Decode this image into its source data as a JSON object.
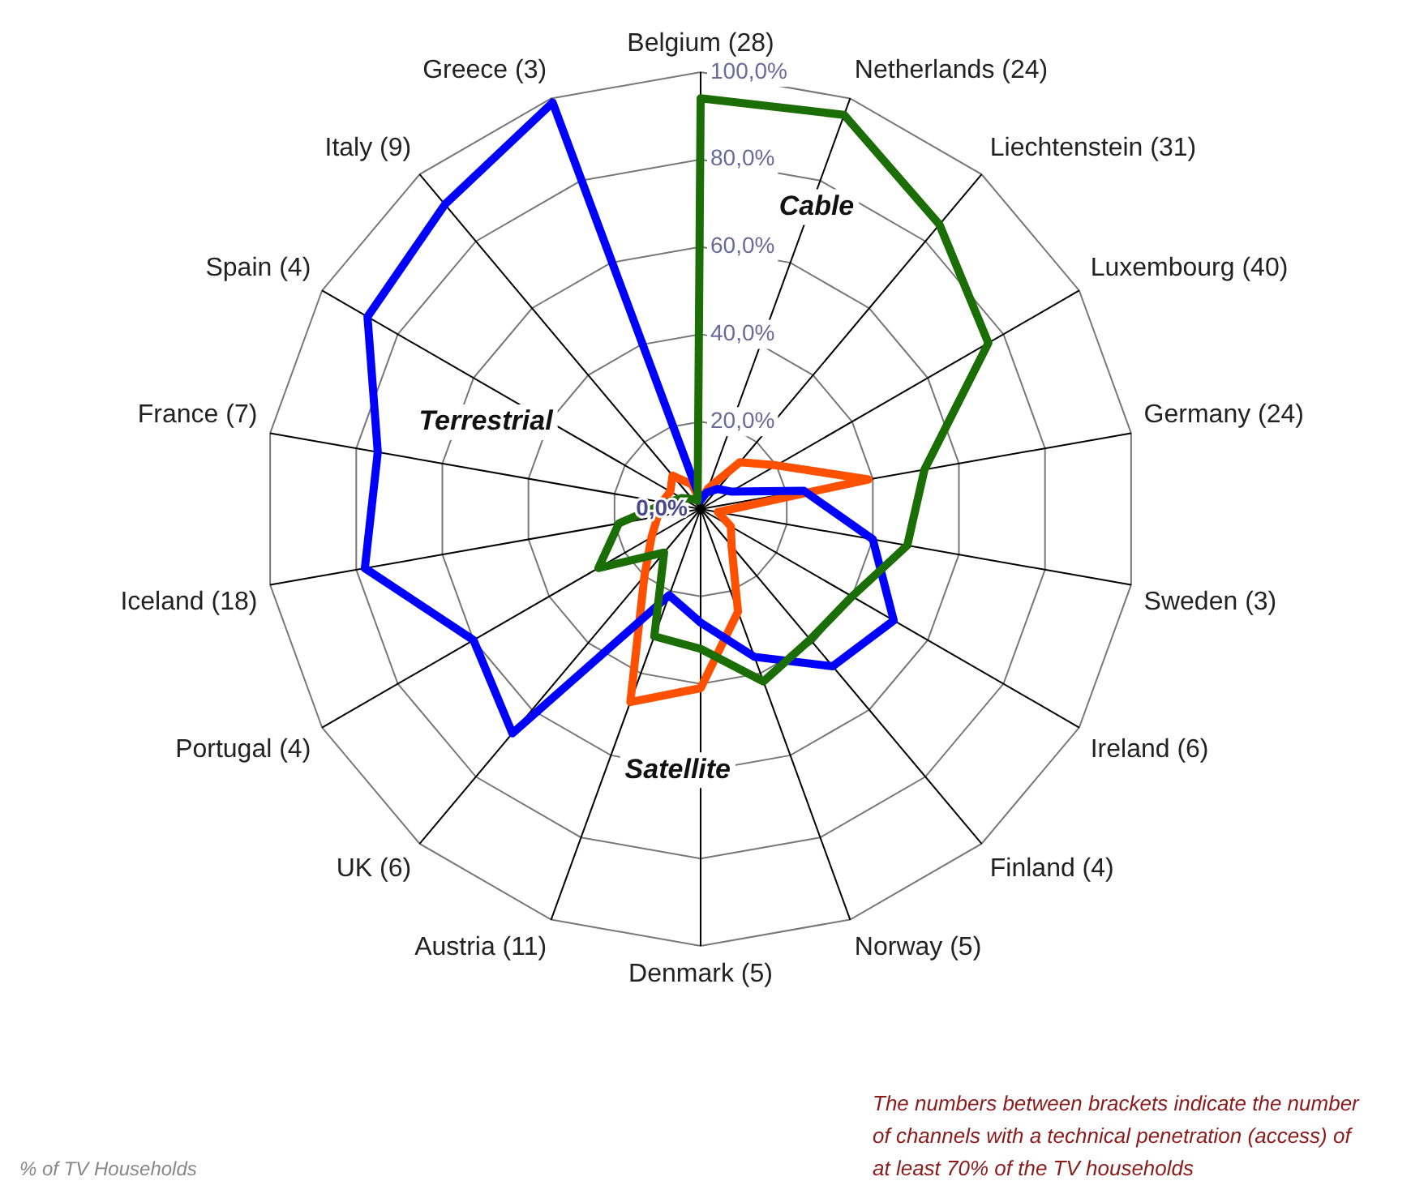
{
  "chart_data": {
    "type": "radar",
    "categories": [
      "Belgium (28)",
      "Netherlands (24)",
      "Liechtenstein (31)",
      "Luxembourg (40)",
      "Germany (24)",
      "Sweden (3)",
      "Ireland (6)",
      "Finland (4)",
      "Norway (5)",
      "Denmark (5)",
      "Austria (11)",
      "UK (6)",
      "Portugal (4)",
      "Iceland (18)",
      "France (7)",
      "Spain (4)",
      "Italy (9)",
      "Greece (3)"
    ],
    "series": [
      {
        "name": "Cable",
        "color": "#1a6e05",
        "values": [
          94,
          96,
          85,
          76,
          52,
          48,
          40,
          39,
          42,
          32,
          31,
          13,
          27,
          19,
          8,
          5,
          3,
          2
        ]
      },
      {
        "name": "Terrestrial",
        "color": "#0000ff",
        "values": [
          2,
          4,
          6,
          8,
          24,
          40,
          51,
          47,
          36,
          26,
          21,
          67,
          60,
          78,
          75,
          88,
          91,
          99
        ]
      },
      {
        "name": "Satellite",
        "color": "#ff5000",
        "values": [
          2,
          5,
          14,
          20,
          39,
          4,
          8,
          11,
          25,
          41,
          47,
          20,
          13,
          10,
          9,
          8,
          10,
          6
        ]
      }
    ],
    "ylim": [
      0,
      100
    ],
    "yticks": [
      {
        "value": 0,
        "label": "0,0%"
      },
      {
        "value": 20,
        "label": "20,0%"
      },
      {
        "value": 40,
        "label": "40,0%"
      },
      {
        "value": 60,
        "label": "60,0%"
      },
      {
        "value": 80,
        "label": "80,0%"
      },
      {
        "value": 100,
        "label": "100,0%"
      }
    ],
    "grid": true,
    "marker": "none",
    "annotations": [
      "% of TV Households",
      "The numbers between brackets indicate the number of channels with a technical penetration (access) of at least 70% of the TV households"
    ]
  }
}
